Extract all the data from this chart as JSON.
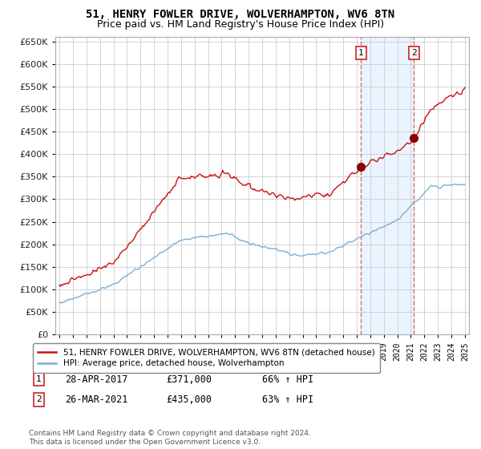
{
  "title": "51, HENRY FOWLER DRIVE, WOLVERHAMPTON, WV6 8TN",
  "subtitle": "Price paid vs. HM Land Registry's House Price Index (HPI)",
  "title_fontsize": 10,
  "subtitle_fontsize": 9,
  "background_color": "#ffffff",
  "grid_color": "#cccccc",
  "sale1_date_str": "28-APR-2017",
  "sale1_price": 371000,
  "sale1_hpi_pct": "66% ↑ HPI",
  "sale2_date_str": "26-MAR-2021",
  "sale2_price": 435000,
  "sale2_hpi_pct": "63% ↑ HPI",
  "legend_line1": "51, HENRY FOWLER DRIVE, WOLVERHAMPTON, WV6 8TN (detached house)",
  "legend_line2": "HPI: Average price, detached house, Wolverhampton",
  "footer": "Contains HM Land Registry data © Crown copyright and database right 2024.\nThis data is licensed under the Open Government Licence v3.0.",
  "sale1_x": 2017.32,
  "sale2_x": 2021.23,
  "hpi_color": "#7bafd4",
  "price_color": "#cc1111",
  "vline_color": "#ee6666",
  "shade_color": "#ddeeff",
  "ylim": [
    0,
    660000
  ],
  "xlim": [
    1994.7,
    2025.3
  ],
  "yticks": [
    0,
    50000,
    100000,
    150000,
    200000,
    250000,
    300000,
    350000,
    400000,
    450000,
    500000,
    550000,
    600000,
    650000
  ]
}
